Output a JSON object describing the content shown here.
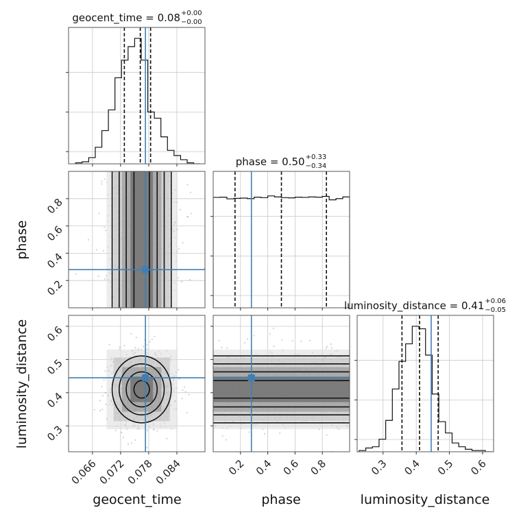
{
  "chart_data": {
    "type": "corner",
    "parameters": [
      "geocent_time",
      "phase",
      "luminosity_distance"
    ],
    "injection": {
      "geocent_time": 0.0773,
      "phase": 0.28,
      "luminosity_distance": 0.445
    },
    "axes": {
      "geocent_time": {
        "lim": [
          0.0609,
          0.09
        ],
        "ticks": [
          0.066,
          0.072,
          0.078,
          0.084
        ],
        "tick_labels": [
          "0.066",
          "0.072",
          "0.078",
          "0.084"
        ],
        "label": "geocent_time"
      },
      "phase": {
        "lim": [
          0.0,
          1.0
        ],
        "ticks": [
          0.2,
          0.4,
          0.6,
          0.8
        ],
        "tick_labels": [
          "0.2",
          "0.4",
          "0.6",
          "0.8"
        ],
        "label": "phase"
      },
      "luminosity_distance": {
        "lim": [
          0.222,
          0.633
        ],
        "ticks": [
          0.3,
          0.4,
          0.5,
          0.6
        ],
        "tick_labels": [
          "0.3",
          "0.4",
          "0.5",
          "0.6"
        ],
        "label": "luminosity_distance"
      }
    },
    "titles": [
      {
        "param": "geocent_time",
        "text": "geocent_time = 0.08",
        "plus": "+0.00",
        "minus": "−0.00"
      },
      {
        "param": "phase",
        "text": "phase = 0.50",
        "plus": "+0.33",
        "minus": "−0.34"
      },
      {
        "param": "luminosity_distance",
        "text": "luminosity_distance = 0.41",
        "plus": "+0.06",
        "minus": "−0.05"
      }
    ],
    "quantiles": {
      "geocent_time": [
        0.0728,
        0.0762,
        0.0784
      ],
      "phase": [
        0.16,
        0.5,
        0.83
      ],
      "luminosity_distance": [
        0.357,
        0.41,
        0.466
      ]
    },
    "histograms": {
      "geocent_time": {
        "edges": [
          0.0624,
          0.0638,
          0.0652,
          0.0666,
          0.068,
          0.0694,
          0.0708,
          0.0722,
          0.0736,
          0.075,
          0.0764,
          0.0778,
          0.0792,
          0.0806,
          0.082,
          0.0834,
          0.0848,
          0.0862,
          0.0876,
          0.089
        ],
        "counts": [
          1,
          2,
          6,
          16,
          32,
          52,
          83,
          100,
          113,
          121,
          100,
          50,
          44,
          26,
          13,
          8,
          4,
          1,
          0
        ]
      },
      "phase": {
        "edges": [
          0.0,
          0.05,
          0.1,
          0.15,
          0.2,
          0.25,
          0.3,
          0.35,
          0.4,
          0.45,
          0.5,
          0.55,
          0.6,
          0.65,
          0.7,
          0.75,
          0.8,
          0.85,
          0.9,
          0.95,
          1.0
        ],
        "counts": [
          95,
          96,
          89,
          91,
          92,
          90,
          96,
          94,
          101,
          97,
          94,
          93,
          96,
          95,
          97,
          96,
          99,
          85,
          90,
          97
        ]
      },
      "luminosity_distance": {
        "edges": [
          0.228,
          0.248,
          0.268,
          0.288,
          0.308,
          0.328,
          0.348,
          0.368,
          0.388,
          0.408,
          0.428,
          0.448,
          0.468,
          0.488,
          0.508,
          0.528,
          0.548,
          0.568,
          0.588,
          0.608,
          0.628
        ],
        "counts": [
          1,
          3,
          4,
          10,
          25,
          50,
          72,
          86,
          100,
          98,
          77,
          46,
          24,
          15,
          7,
          4,
          2,
          1,
          1,
          0
        ]
      }
    },
    "grid": true
  }
}
